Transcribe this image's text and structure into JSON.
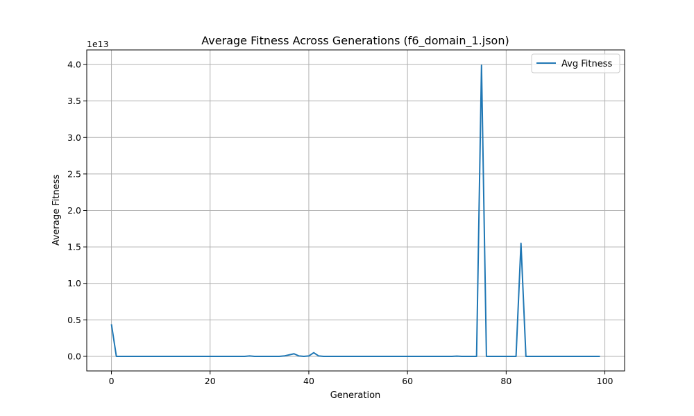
{
  "chart_data": {
    "type": "line",
    "title": "Average Fitness Across Generations (f6_domain_1.json)",
    "xlabel": "Generation",
    "ylabel": "Average Fitness",
    "y_offset_label": "1e13",
    "xlim": [
      -5,
      104
    ],
    "ylim": [
      -0.2,
      4.2
    ],
    "xticks": [
      0,
      20,
      40,
      60,
      80,
      100
    ],
    "xtick_labels": [
      "0",
      "20",
      "40",
      "60",
      "80",
      "100"
    ],
    "yticks": [
      0.0,
      0.5,
      1.0,
      1.5,
      2.0,
      2.5,
      3.0,
      3.5,
      4.0
    ],
    "ytick_labels": [
      "0.0",
      "0.5",
      "1.0",
      "1.5",
      "2.0",
      "2.5",
      "3.0",
      "3.5",
      "4.0"
    ],
    "grid": true,
    "legend_position": "top-right",
    "series": [
      {
        "name": "Avg Fitness",
        "color": "#1f77b4",
        "x": [
          0,
          1,
          2,
          3,
          4,
          5,
          6,
          7,
          8,
          9,
          10,
          11,
          12,
          13,
          14,
          15,
          16,
          17,
          18,
          19,
          20,
          21,
          22,
          23,
          24,
          25,
          26,
          27,
          28,
          29,
          30,
          31,
          32,
          33,
          34,
          35,
          36,
          37,
          38,
          39,
          40,
          41,
          42,
          43,
          44,
          45,
          46,
          47,
          48,
          49,
          50,
          51,
          52,
          53,
          54,
          55,
          56,
          57,
          58,
          59,
          60,
          61,
          62,
          63,
          64,
          65,
          66,
          67,
          68,
          69,
          70,
          71,
          72,
          73,
          74,
          75,
          76,
          77,
          78,
          79,
          80,
          81,
          82,
          83,
          84,
          85,
          86,
          87,
          88,
          89,
          90,
          91,
          92,
          93,
          94,
          95,
          96,
          97,
          98,
          99
        ],
        "values": [
          0.44,
          0,
          0,
          0,
          0,
          0,
          0,
          0,
          0,
          0,
          0,
          0,
          0,
          0,
          0,
          0,
          0,
          0,
          0,
          0,
          0,
          0,
          0,
          0,
          0,
          0,
          0,
          0,
          0.005,
          0,
          0,
          0,
          0,
          0,
          0,
          0.005,
          0.02,
          0.035,
          0.005,
          0,
          0.005,
          0.05,
          0.005,
          0,
          0,
          0,
          0,
          0,
          0,
          0,
          0,
          0,
          0,
          0,
          0,
          0,
          0,
          0,
          0,
          0,
          0,
          0,
          0,
          0,
          0,
          0,
          0,
          0,
          0,
          0,
          0.003,
          0,
          0,
          0,
          0,
          3.99,
          0,
          0,
          0,
          0,
          0,
          0,
          0,
          1.55,
          0,
          0,
          0,
          0,
          0,
          0,
          0,
          0,
          0,
          0,
          0,
          0,
          0,
          0,
          0,
          0
        ]
      }
    ]
  }
}
